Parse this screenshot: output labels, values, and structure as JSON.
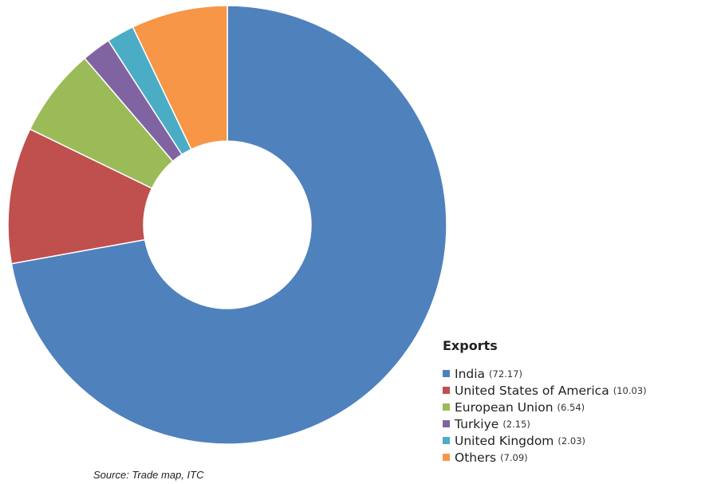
{
  "chart_data": {
    "type": "pie",
    "donut": true,
    "legend_title": "Exports",
    "legend_position": "bottom-right",
    "categories": [
      "India",
      "United States of America",
      "European Union",
      "Turkiye",
      "United Kingdom",
      "Others"
    ],
    "values": [
      72.17,
      10.03,
      6.54,
      2.15,
      2.03,
      7.09
    ],
    "value_labels": [
      "(72.17)",
      "(10.03)",
      "(6.54)",
      "(2.15)",
      "(2.03)",
      "(7.09)"
    ],
    "colors": [
      "#4f81bd",
      "#c0504d",
      "#9bbb59",
      "#8064a2",
      "#4bacc6",
      "#f79646"
    ]
  },
  "source": "Source: Trade map, ITC"
}
